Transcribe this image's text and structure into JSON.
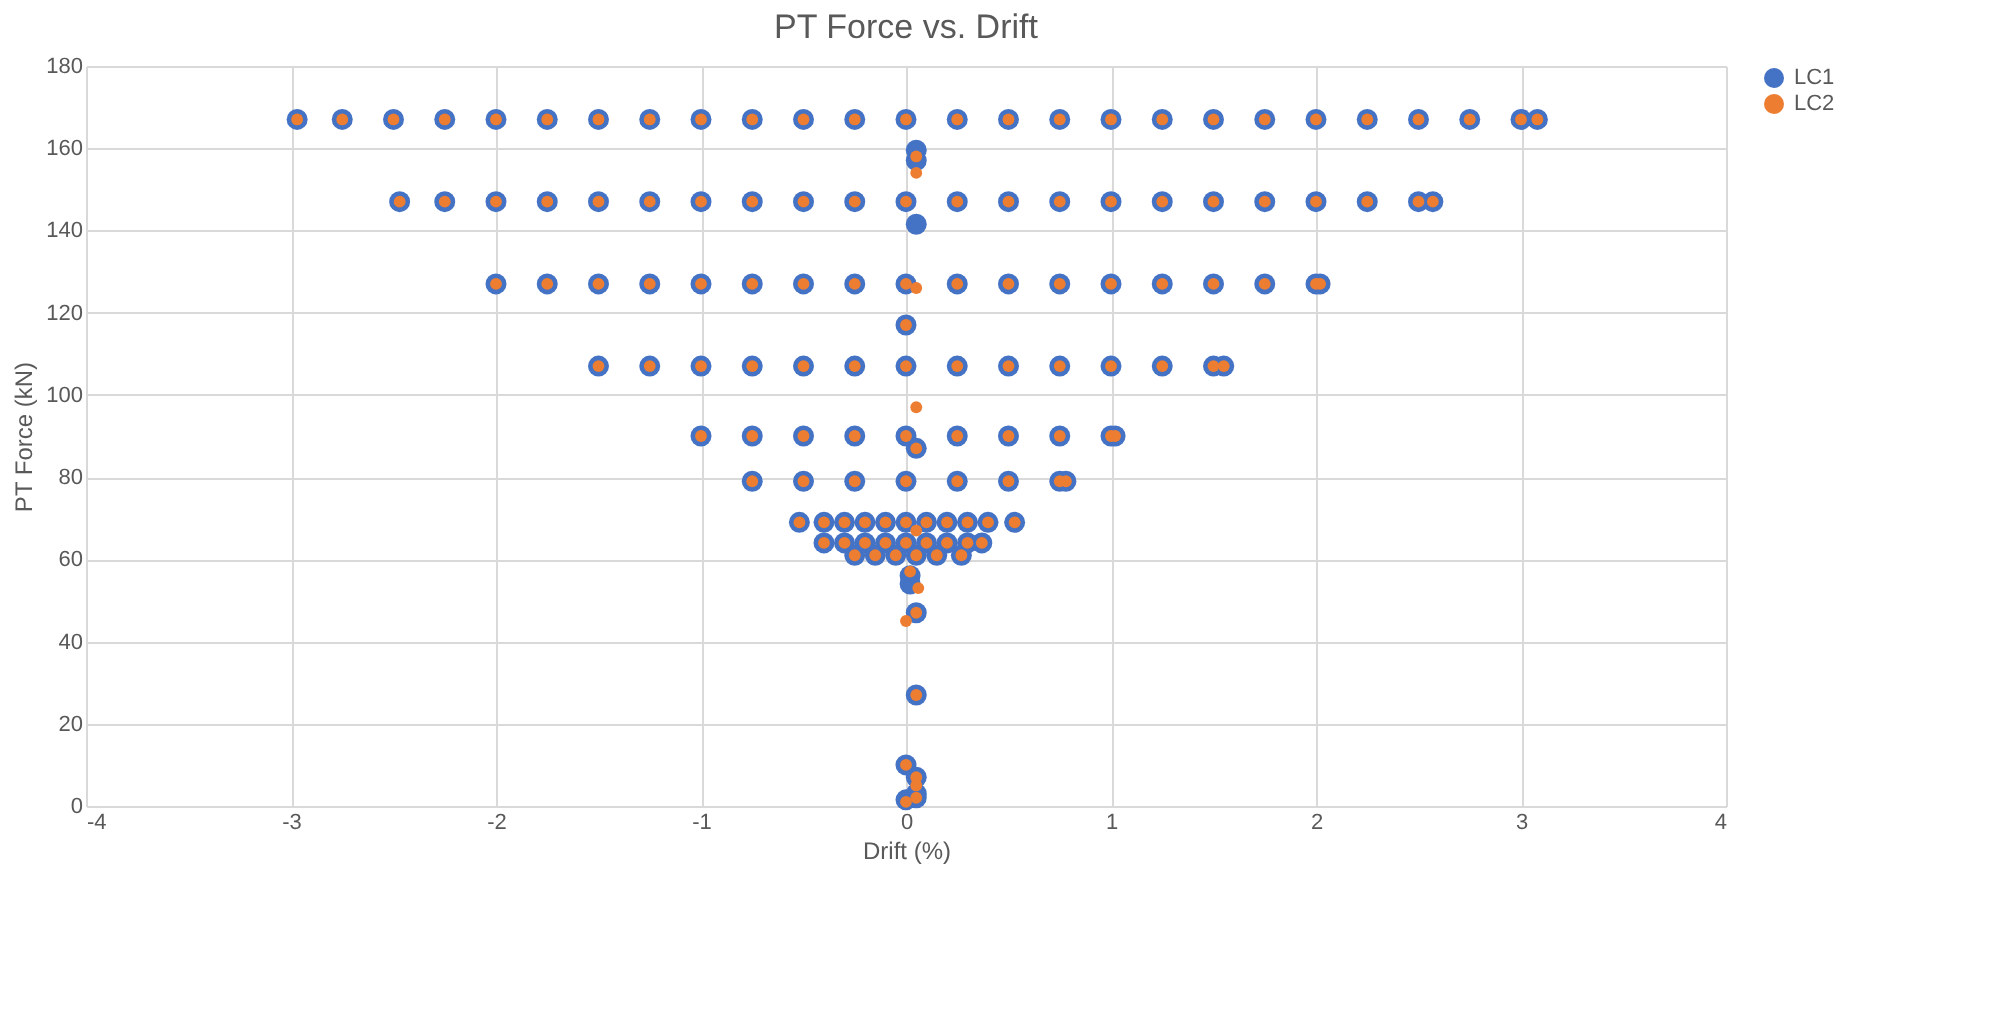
{
  "chart_data": {
    "type": "scatter",
    "title": "PT Force vs. Drift",
    "xlabel": "Drift (%)",
    "ylabel": "PT Force (kN)",
    "xlim": [
      -4,
      4
    ],
    "xticks": [
      -4,
      -3,
      -2,
      -1,
      0,
      1,
      2,
      3,
      4
    ],
    "ylim": [
      0,
      180
    ],
    "yticks": [
      0,
      20,
      40,
      60,
      80,
      100,
      120,
      140,
      160,
      180
    ],
    "grid": true,
    "legend": "right",
    "marker": "circle",
    "series": [
      {
        "name": "LC1",
        "color": "#4472c4",
        "x": [
          -2.97,
          -2.75,
          -2.5,
          -2.25,
          -2,
          -1.75,
          -1.5,
          -1.25,
          -1,
          -0.75,
          -0.5,
          -0.25,
          0,
          0.25,
          0.5,
          0.75,
          1,
          1.25,
          1.5,
          1.75,
          2,
          2.25,
          2.5,
          2.75,
          3,
          3.08,
          -2.47,
          -2.25,
          -2,
          -1.75,
          -1.5,
          -1.25,
          -1,
          -0.75,
          -0.5,
          -0.25,
          0,
          0.25,
          0.5,
          0.75,
          1,
          1.25,
          1.5,
          1.75,
          2,
          2.25,
          2.5,
          2.57,
          -2,
          -1.75,
          -1.5,
          -1.25,
          -1,
          -0.75,
          -0.5,
          -0.25,
          0,
          0.25,
          0.5,
          0.75,
          1,
          1.25,
          1.5,
          1.75,
          2,
          2.02,
          -1.5,
          -1.25,
          -1,
          -0.75,
          -0.5,
          -0.25,
          0,
          0.25,
          0.5,
          0.75,
          1,
          1.25,
          1.5,
          1.55,
          -1,
          -0.75,
          -0.5,
          -0.25,
          0,
          0.25,
          0.5,
          0.75,
          1,
          1.02,
          -0.75,
          -0.5,
          -0.25,
          0,
          0.25,
          0.5,
          0.75,
          0.78,
          -0.52,
          -0.4,
          -0.3,
          -0.2,
          -0.1,
          0,
          0.1,
          0.2,
          0.3,
          0.4,
          0.53,
          -0.4,
          -0.3,
          -0.2,
          -0.1,
          0,
          0.1,
          0.2,
          0.3,
          0.37,
          -0.25,
          -0.15,
          -0.05,
          0.05,
          0.15,
          0.27,
          0.05,
          0.05,
          0.05,
          0,
          0.05,
          0.02,
          0.02,
          0.05,
          0.05,
          0,
          0.05,
          0,
          0.05,
          0.05
        ],
        "values": [
          167,
          167,
          167,
          167,
          167,
          167,
          167,
          167,
          167,
          167,
          167,
          167,
          167,
          167,
          167,
          167,
          167,
          167,
          167,
          167,
          167,
          167,
          167,
          167,
          167,
          167,
          147,
          147,
          147,
          147,
          147,
          147,
          147,
          147,
          147,
          147,
          147,
          147,
          147,
          147,
          147,
          147,
          147,
          147,
          147,
          147,
          147,
          147,
          127,
          127,
          127,
          127,
          127,
          127,
          127,
          127,
          127,
          127,
          127,
          127,
          127,
          127,
          127,
          127,
          127,
          127,
          107,
          107,
          107,
          107,
          107,
          107,
          107,
          107,
          107,
          107,
          107,
          107,
          107,
          107,
          90,
          90,
          90,
          90,
          90,
          90,
          90,
          90,
          90,
          90,
          79,
          79,
          79,
          79,
          79,
          79,
          79,
          79,
          69,
          69,
          69,
          69,
          69,
          69,
          69,
          69,
          69,
          69,
          69,
          64,
          64,
          64,
          64,
          64,
          64,
          64,
          64,
          64,
          61,
          61,
          61,
          61,
          61,
          61,
          159.5,
          157,
          141.5,
          117,
          87,
          56,
          54,
          47,
          27,
          10,
          7,
          1.5,
          2,
          3
        ]
      },
      {
        "name": "LC2",
        "color": "#ed7d31",
        "x": [
          -2.97,
          -2.75,
          -2.5,
          -2.25,
          -2,
          -1.75,
          -1.5,
          -1.25,
          -1,
          -0.75,
          -0.5,
          -0.25,
          0,
          0.25,
          0.5,
          0.75,
          1,
          1.25,
          1.5,
          1.75,
          2,
          2.25,
          2.5,
          2.75,
          3,
          3.08,
          -2.47,
          -2.25,
          -2,
          -1.75,
          -1.5,
          -1.25,
          -1,
          -0.75,
          -0.5,
          -0.25,
          0,
          0.25,
          0.5,
          0.75,
          1,
          1.25,
          1.5,
          1.75,
          2,
          2.25,
          2.5,
          2.57,
          -2,
          -1.75,
          -1.5,
          -1.25,
          -1,
          -0.75,
          -0.5,
          -0.25,
          0,
          0.25,
          0.5,
          0.75,
          1,
          1.25,
          1.5,
          1.75,
          2,
          2.02,
          -1.5,
          -1.25,
          -1,
          -0.75,
          -0.5,
          -0.25,
          0,
          0.25,
          0.5,
          0.75,
          1,
          1.25,
          1.5,
          1.55,
          -1,
          -0.75,
          -0.5,
          -0.25,
          0,
          0.25,
          0.5,
          0.75,
          1,
          1.02,
          -0.75,
          -0.5,
          -0.25,
          0,
          0.25,
          0.5,
          0.75,
          0.78,
          -0.52,
          -0.4,
          -0.3,
          -0.2,
          -0.1,
          0,
          0.1,
          0.2,
          0.3,
          0.4,
          0.53,
          -0.4,
          -0.3,
          -0.2,
          -0.1,
          0,
          0.1,
          0.2,
          0.3,
          0.37,
          -0.25,
          -0.15,
          -0.05,
          0.05,
          0.15,
          0.27,
          0.05,
          0.05,
          0.05,
          0,
          0.05,
          0.05,
          0.05,
          0.02,
          0.06,
          0,
          0.05,
          0.05,
          0,
          0.05,
          0.05,
          0,
          0.05
        ],
        "values": [
          167,
          167,
          167,
          167,
          167,
          167,
          167,
          167,
          167,
          167,
          167,
          167,
          167,
          167,
          167,
          167,
          167,
          167,
          167,
          167,
          167,
          167,
          167,
          167,
          167,
          167,
          147,
          147,
          147,
          147,
          147,
          147,
          147,
          147,
          147,
          147,
          147,
          147,
          147,
          147,
          147,
          147,
          147,
          147,
          147,
          147,
          147,
          147,
          127,
          127,
          127,
          127,
          127,
          127,
          127,
          127,
          127,
          127,
          127,
          127,
          127,
          127,
          127,
          127,
          127,
          127,
          107,
          107,
          107,
          107,
          107,
          107,
          107,
          107,
          107,
          107,
          107,
          107,
          107,
          107,
          90,
          90,
          90,
          90,
          90,
          90,
          90,
          90,
          90,
          90,
          79,
          79,
          79,
          79,
          79,
          79,
          79,
          79,
          69,
          69,
          69,
          69,
          69,
          69,
          69,
          69,
          69,
          69,
          69,
          64,
          64,
          64,
          64,
          64,
          64,
          64,
          64,
          64,
          61,
          61,
          61,
          61,
          61,
          61,
          158,
          154,
          126,
          117,
          97,
          87,
          67,
          57,
          53,
          45,
          47,
          27,
          10,
          7,
          5,
          1,
          2
        ]
      }
    ]
  }
}
